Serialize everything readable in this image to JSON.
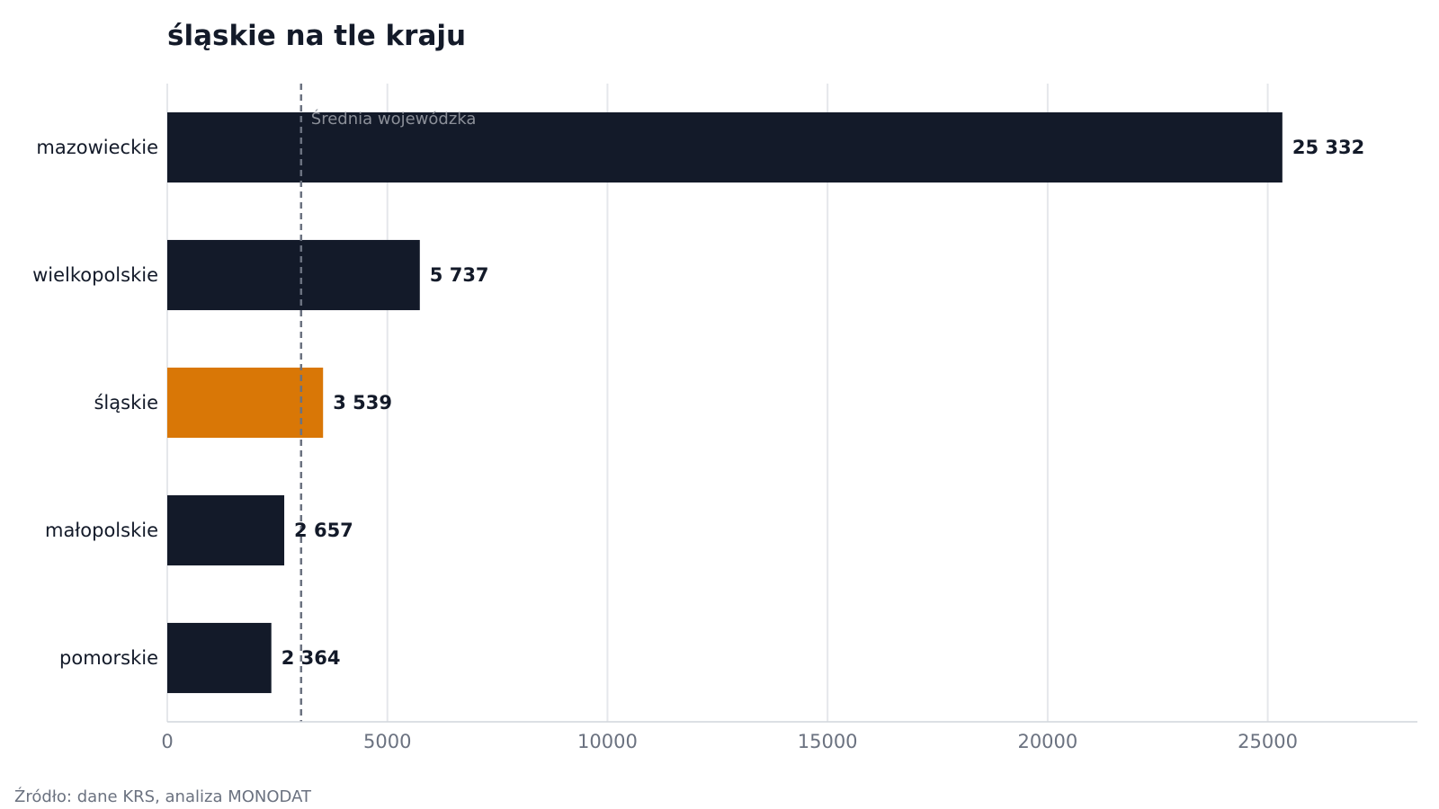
{
  "title": "śląskie na tle kraju",
  "source": "Źródło: dane KRS, analiza MONODAT",
  "colors": {
    "default_bar": "#131a29",
    "highlight_bar": "#d97706",
    "grid": "#e5e7eb",
    "reference_line": "#6b7280",
    "text": "#131a29",
    "muted": "#6b7280"
  },
  "chart_data": {
    "type": "bar",
    "orientation": "horizontal",
    "categories": [
      "mazowieckie",
      "wielkopolskie",
      "śląskie",
      "małopolskie",
      "pomorskie"
    ],
    "values": [
      25332,
      5737,
      3539,
      2657,
      2364
    ],
    "value_labels": [
      "25 332",
      "5 737",
      "3 539",
      "2 657",
      "2 364"
    ],
    "highlight": "śląskie",
    "xlim": [
      0,
      28400
    ],
    "xticks": [
      0,
      5000,
      10000,
      15000,
      20000,
      25000
    ],
    "xtick_labels": [
      "0",
      "5000",
      "10000",
      "15000",
      "20000",
      "25000"
    ],
    "grid": "vertical",
    "reference_line": {
      "value": 3040,
      "label": "Średnia wojewódzka",
      "style": "dashed"
    }
  }
}
